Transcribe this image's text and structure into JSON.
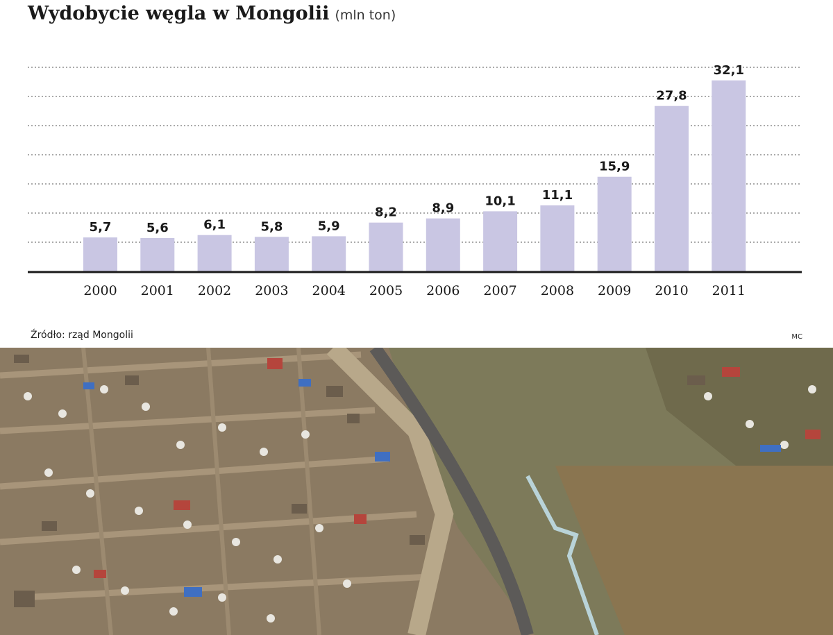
{
  "header": {
    "title": "Wydobycie węgla w Mongolii",
    "unit": "(mln ton)"
  },
  "footer": {
    "source": "Źródło: rząd Mongolii",
    "credit": "MC"
  },
  "photo": {
    "semantic": "aerial-photo-ger-district"
  },
  "colors": {
    "bar": "#c9c6e3",
    "axis": "#1a1a1a",
    "grid": "#555555",
    "text": "#1a1a1a"
  },
  "chart_data": {
    "type": "bar",
    "title": "Wydobycie węgla w Mongolii",
    "unit": "(mln ton)",
    "categories": [
      "2000",
      "2001",
      "2002",
      "2003",
      "2004",
      "2005",
      "2006",
      "2007",
      "2008",
      "2009",
      "2010",
      "2011"
    ],
    "values": [
      5.7,
      5.6,
      6.1,
      5.8,
      5.9,
      8.2,
      8.9,
      10.1,
      11.1,
      15.9,
      27.8,
      32.1
    ],
    "value_labels": [
      "5,7",
      "5,6",
      "6,1",
      "5,8",
      "5,9",
      "8,2",
      "8,9",
      "10,1",
      "11,1",
      "15,9",
      "27,8",
      "32,1"
    ],
    "ylim": [
      0,
      35
    ],
    "grid": true,
    "gridlines_count": 7,
    "legend": "none"
  }
}
